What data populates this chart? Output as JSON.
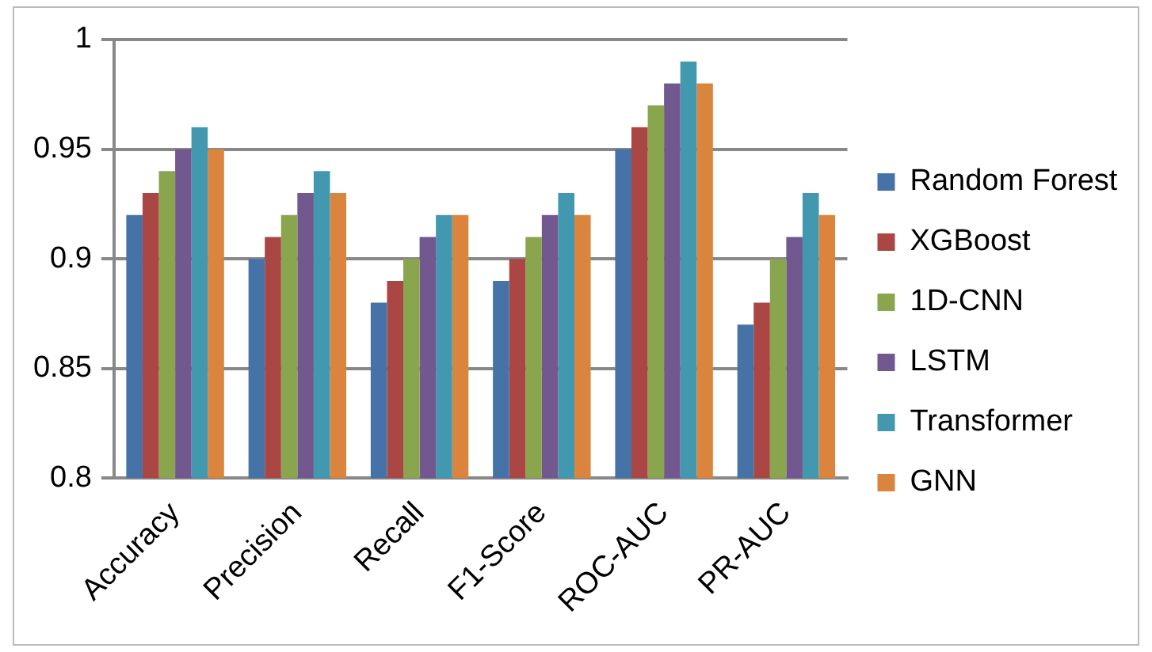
{
  "chart_data": {
    "type": "bar",
    "categories": [
      "Accuracy",
      "Precision",
      "Recall",
      "F1-Score",
      "ROC-AUC",
      "PR-AUC"
    ],
    "series": [
      {
        "name": "Random Forest",
        "color": "#4572a7",
        "values": [
          0.92,
          0.9,
          0.88,
          0.89,
          0.95,
          0.87
        ]
      },
      {
        "name": "XGBoost",
        "color": "#aa4643",
        "values": [
          0.93,
          0.91,
          0.89,
          0.9,
          0.96,
          0.88
        ]
      },
      {
        "name": "1D-CNN",
        "color": "#89a54e",
        "values": [
          0.94,
          0.92,
          0.9,
          0.91,
          0.97,
          0.9
        ]
      },
      {
        "name": "LSTM",
        "color": "#71588f",
        "values": [
          0.95,
          0.93,
          0.91,
          0.92,
          0.98,
          0.91
        ]
      },
      {
        "name": "Transformer",
        "color": "#4198af",
        "values": [
          0.96,
          0.94,
          0.92,
          0.93,
          0.99,
          0.93
        ]
      },
      {
        "name": "GNN",
        "color": "#db843d",
        "values": [
          0.95,
          0.93,
          0.92,
          0.92,
          0.98,
          0.92
        ]
      }
    ],
    "ylim": [
      0.8,
      1
    ],
    "yticks": [
      0.8,
      0.85,
      0.9,
      0.95,
      1
    ],
    "grid": "y",
    "legend": "right"
  }
}
